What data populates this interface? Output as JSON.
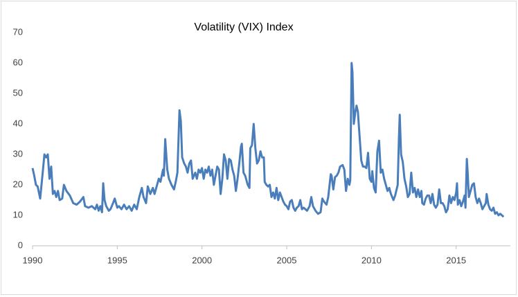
{
  "chart_data": {
    "type": "line",
    "title": "Volatility (VIX) Index",
    "x": [
      1990.0,
      1990.1,
      1990.2,
      1990.3,
      1990.45,
      1990.6,
      1990.7,
      1990.8,
      1990.9,
      1991.0,
      1991.1,
      1991.2,
      1991.3,
      1991.4,
      1991.5,
      1991.6,
      1991.75,
      1991.85,
      1992.0,
      1992.2,
      1992.4,
      1992.6,
      1992.8,
      1993.0,
      1993.1,
      1993.3,
      1993.5,
      1993.7,
      1993.8,
      1993.9,
      1994.0,
      1994.1,
      1994.17,
      1994.25,
      1994.35,
      1994.5,
      1994.6,
      1994.75,
      1994.85,
      1995.0,
      1995.1,
      1995.25,
      1995.4,
      1995.55,
      1995.7,
      1995.85,
      1996.0,
      1996.15,
      1996.3,
      1996.45,
      1996.55,
      1996.7,
      1996.8,
      1996.95,
      1997.1,
      1997.2,
      1997.35,
      1997.45,
      1997.55,
      1997.7,
      1997.75,
      1997.83,
      1997.95,
      1998.05,
      1998.2,
      1998.35,
      1998.45,
      1998.55,
      1998.67,
      1998.75,
      1998.83,
      1998.95,
      1999.05,
      1999.15,
      1999.25,
      1999.35,
      1999.45,
      1999.6,
      1999.7,
      1999.8,
      1999.9,
      2000.0,
      2000.1,
      2000.2,
      2000.3,
      2000.4,
      2000.5,
      2000.6,
      2000.7,
      2000.8,
      2000.9,
      2001.0,
      2001.1,
      2001.2,
      2001.3,
      2001.4,
      2001.5,
      2001.6,
      2001.7,
      2001.8,
      2001.9,
      2002.0,
      2002.1,
      2002.2,
      2002.3,
      2002.35,
      2002.45,
      2002.55,
      2002.7,
      2002.8,
      2002.85,
      2002.95,
      2003.05,
      2003.15,
      2003.25,
      2003.35,
      2003.45,
      2003.55,
      2003.65,
      2003.7,
      2003.8,
      2003.9,
      2004.0,
      2004.1,
      2004.2,
      2004.3,
      2004.4,
      2004.5,
      2004.6,
      2004.7,
      2004.8,
      2004.9,
      2005.0,
      2005.1,
      2005.2,
      2005.3,
      2005.4,
      2005.5,
      2005.6,
      2005.7,
      2005.8,
      2005.9,
      2006.0,
      2006.2,
      2006.35,
      2006.45,
      2006.55,
      2006.7,
      2006.85,
      2007.0,
      2007.1,
      2007.2,
      2007.35,
      2007.45,
      2007.6,
      2007.65,
      2007.75,
      2007.85,
      2007.95,
      2008.05,
      2008.15,
      2008.3,
      2008.4,
      2008.5,
      2008.6,
      2008.7,
      2008.75,
      2008.83,
      2008.88,
      2008.96,
      2009.05,
      2009.12,
      2009.2,
      2009.3,
      2009.4,
      2009.5,
      2009.6,
      2009.7,
      2009.8,
      2009.9,
      2010.0,
      2010.05,
      2010.15,
      2010.25,
      2010.35,
      2010.45,
      2010.55,
      2010.65,
      2010.75,
      2010.85,
      2010.95,
      2011.05,
      2011.15,
      2011.3,
      2011.4,
      2011.55,
      2011.62,
      2011.67,
      2011.75,
      2011.85,
      2011.95,
      2012.05,
      2012.15,
      2012.25,
      2012.35,
      2012.45,
      2012.55,
      2012.65,
      2012.75,
      2012.85,
      2012.95,
      2013.0,
      2013.1,
      2013.2,
      2013.3,
      2013.4,
      2013.5,
      2013.6,
      2013.7,
      2013.8,
      2013.9,
      2014.0,
      2014.1,
      2014.2,
      2014.3,
      2014.4,
      2014.5,
      2014.6,
      2014.7,
      2014.8,
      2014.9,
      2015.0,
      2015.05,
      2015.1,
      2015.2,
      2015.3,
      2015.4,
      2015.5,
      2015.55,
      2015.63,
      2015.68,
      2015.75,
      2015.85,
      2015.95,
      2016.05,
      2016.15,
      2016.25,
      2016.35,
      2016.45,
      2016.55,
      2016.65,
      2016.75,
      2016.8,
      2016.9,
      2017.0,
      2017.1,
      2017.2,
      2017.3,
      2017.4,
      2017.5,
      2017.6,
      2017.7,
      2017.8
    ],
    "series": [
      {
        "color": "#4a7ebb",
        "values": [
          25.5,
          23,
          20,
          19.5,
          15.5,
          24,
          30,
          29,
          30,
          22,
          26,
          17,
          18,
          16,
          18,
          15,
          15.5,
          20,
          18,
          16.5,
          14,
          13.5,
          14.5,
          16,
          13,
          12.5,
          13,
          12,
          13.5,
          11.5,
          13,
          11,
          20.5,
          15,
          13,
          11.5,
          12,
          14,
          15.5,
          12.5,
          13,
          12,
          13.5,
          12,
          13,
          11.5,
          13.5,
          12,
          16,
          19,
          16,
          14,
          19.5,
          17,
          19,
          17,
          20,
          22,
          21,
          25,
          23,
          35,
          25,
          22,
          20,
          18.5,
          21,
          24,
          44.5,
          41,
          29,
          27,
          26,
          24,
          27,
          28,
          22,
          24,
          22,
          25,
          24,
          25.5,
          22,
          25,
          24,
          26,
          23,
          25,
          20,
          23,
          26,
          25,
          17,
          22,
          30,
          28,
          22,
          28.5,
          28,
          25,
          23,
          18,
          22,
          27,
          32.5,
          33.5,
          24,
          23,
          20,
          19,
          32,
          33,
          40,
          32,
          27,
          28,
          31,
          29,
          29,
          21,
          20,
          19.5,
          20,
          16,
          17.5,
          15.5,
          19,
          15,
          17.5,
          16,
          14.5,
          13.5,
          13,
          12,
          14.5,
          15,
          12.5,
          11.5,
          12.5,
          13,
          15,
          12,
          12.5,
          11.5,
          13,
          16,
          13,
          11.5,
          10.5,
          11,
          15.5,
          14.5,
          13.5,
          16,
          23.5,
          23,
          18.5,
          22.5,
          23,
          24,
          26,
          26.5,
          25,
          18,
          22,
          20,
          21.5,
          60,
          57,
          40,
          44,
          46,
          44,
          36,
          28,
          26,
          26,
          25.5,
          30.5,
          22,
          21,
          24.5,
          19,
          17.5,
          31,
          34.5,
          24,
          25,
          22,
          20,
          18,
          19,
          17,
          15,
          16.5,
          20,
          35,
          43,
          30,
          27.5,
          22,
          19.5,
          16,
          17,
          24,
          17.5,
          19,
          16,
          18.5,
          16,
          18,
          14,
          13.5,
          15.5,
          16.5,
          16.5,
          14,
          17,
          13.5,
          12.5,
          13.5,
          18.5,
          14,
          14,
          13,
          11,
          12,
          16.5,
          14,
          16,
          15,
          17.5,
          20.5,
          13.5,
          15,
          13,
          14.5,
          16.5,
          12.5,
          28.5,
          24,
          16,
          18,
          20,
          20.5,
          16,
          14,
          15.5,
          14,
          12,
          13,
          14,
          17,
          13.5,
          12,
          11.5,
          12.5,
          10.5,
          11,
          10,
          10.5,
          10,
          9.5
        ]
      }
    ],
    "xlim": [
      1990,
      2018.2
    ],
    "xticks": [
      1990,
      1995,
      2000,
      2005,
      2010,
      2015
    ],
    "ylim": [
      0,
      70
    ],
    "yticks": [
      0,
      10,
      20,
      30,
      40,
      50,
      60,
      70
    ]
  }
}
